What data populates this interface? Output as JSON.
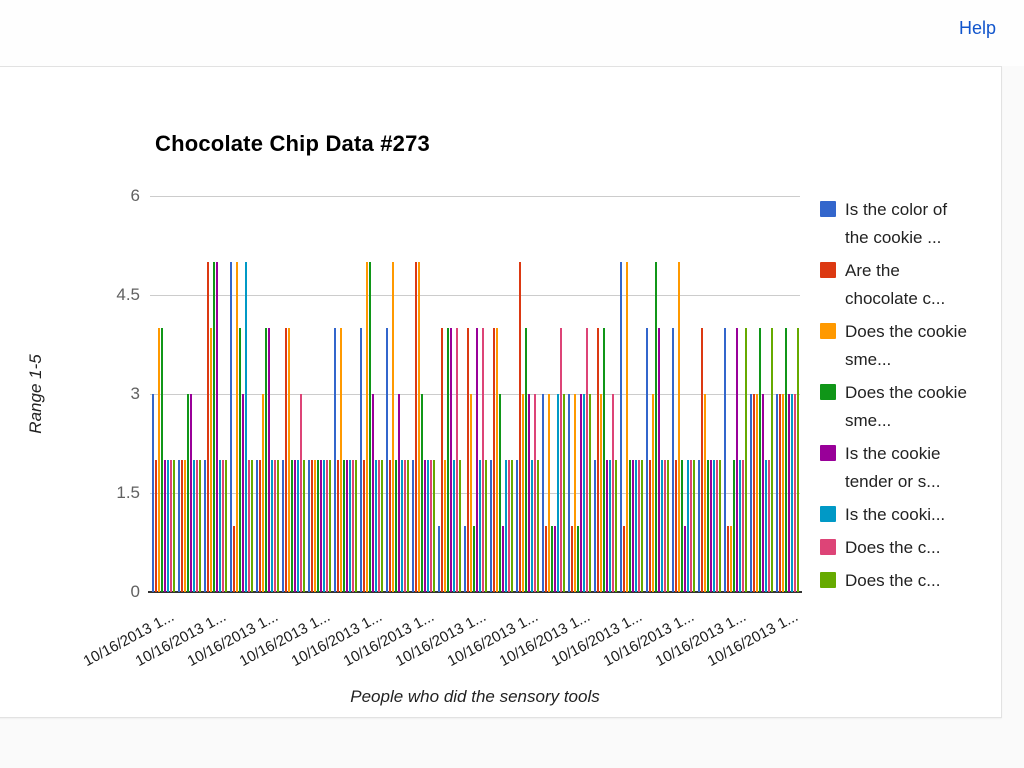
{
  "header": {
    "help_label": "Help"
  },
  "chart_data": {
    "type": "bar",
    "title": "Chocolate Chip Data #273",
    "xlabel": "People who did the sensory tools",
    "ylabel": "Range 1-5",
    "ylim": [
      0,
      6
    ],
    "y_ticks": [
      0,
      1.5,
      3,
      4.5,
      6
    ],
    "grid": true,
    "legend_position": "right",
    "n_groups": 25,
    "x_tick_labels_visible": [
      "10/16/2013 1...",
      "10/16/2013 1...",
      "10/16/2013 1...",
      "10/16/2013 1...",
      "10/16/2013 1...",
      "10/16/2013 1...",
      "10/16/2013 1...",
      "10/16/2013 1...",
      "10/16/2013 1...",
      "10/16/2013 1...",
      "10/16/2013 1...",
      "10/16/2013 1...",
      "10/16/2013 1..."
    ],
    "series": [
      {
        "name": "Is the color of the cookie ...",
        "color": "#3366CC",
        "values": [
          3,
          2,
          2,
          5,
          2,
          2,
          2,
          4,
          4,
          4,
          2,
          1,
          1,
          2,
          2,
          3,
          3,
          2,
          5,
          4,
          4,
          2,
          4,
          3,
          3
        ]
      },
      {
        "name": "Are the chocolate c...",
        "color": "#DC3912",
        "values": [
          2,
          2,
          5,
          1,
          2,
          4,
          2,
          2,
          2,
          2,
          5,
          4,
          4,
          4,
          5,
          1,
          1,
          4,
          1,
          2,
          2,
          4,
          1,
          3,
          3
        ]
      },
      {
        "name": "Does the cookie sme...",
        "color": "#FF9900",
        "values": [
          4,
          2,
          4,
          5,
          3,
          4,
          2,
          4,
          5,
          5,
          5,
          2,
          3,
          4,
          3,
          3,
          3,
          3,
          5,
          3,
          5,
          3,
          1,
          3,
          3
        ]
      },
      {
        "name": "Does the cookie sme...",
        "color": "#109618",
        "values": [
          4,
          3,
          5,
          4,
          4,
          2,
          2,
          2,
          5,
          2,
          3,
          4,
          1,
          3,
          4,
          1,
          1,
          4,
          2,
          5,
          2,
          2,
          2,
          4,
          4
        ]
      },
      {
        "name": "Is the cookie tender or s...",
        "color": "#990099",
        "values": [
          2,
          3,
          5,
          3,
          4,
          2,
          2,
          2,
          3,
          3,
          2,
          4,
          4,
          1,
          3,
          1,
          3,
          2,
          2,
          4,
          1,
          2,
          4,
          3,
          3
        ]
      },
      {
        "name": "Is the cooki...",
        "color": "#0099C6",
        "values": [
          2,
          2,
          2,
          5,
          2,
          2,
          2,
          2,
          2,
          2,
          2,
          2,
          2,
          2,
          2,
          3,
          3,
          2,
          2,
          2,
          2,
          2,
          2,
          2,
          3
        ]
      },
      {
        "name": "Does the c...",
        "color": "#DD4477",
        "values": [
          2,
          2,
          2,
          2,
          2,
          3,
          2,
          2,
          2,
          2,
          2,
          4,
          4,
          2,
          3,
          4,
          4,
          3,
          2,
          2,
          2,
          2,
          2,
          2,
          3
        ]
      },
      {
        "name": "Does the c...",
        "color": "#66AA00",
        "values": [
          2,
          2,
          2,
          2,
          2,
          2,
          2,
          2,
          2,
          2,
          2,
          2,
          2,
          2,
          2,
          3,
          3,
          2,
          2,
          2,
          2,
          2,
          4,
          4,
          4
        ]
      }
    ]
  }
}
